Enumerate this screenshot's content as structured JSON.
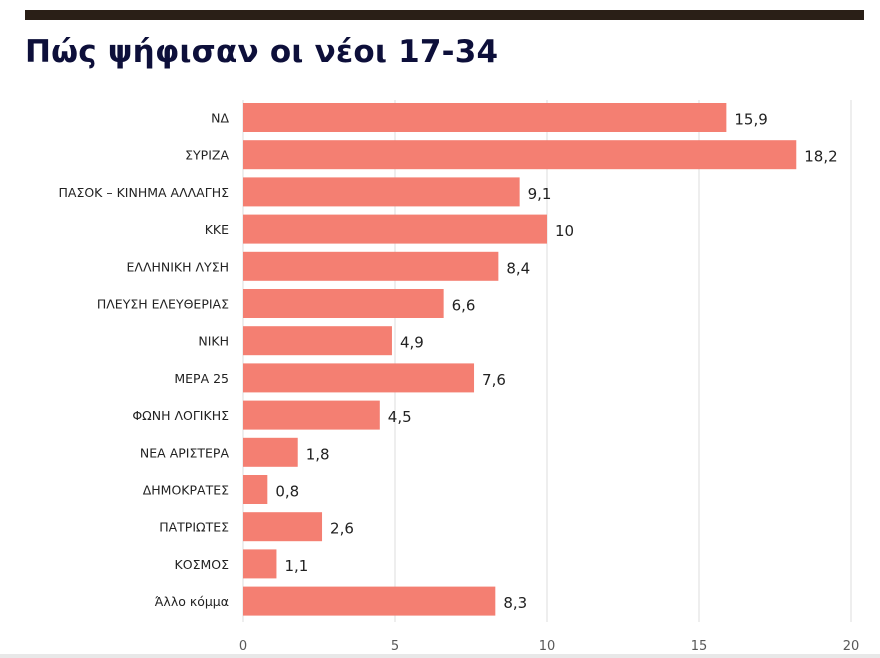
{
  "title": "Πώς ψήφισαν οι νέοι 17-34",
  "chart_data": {
    "type": "bar",
    "orientation": "horizontal",
    "title": "Πώς ψήφισαν οι νέοι 17-34",
    "categories": [
      "ΝΔ",
      "ΣΥΡΙΖΑ",
      "ΠΑΣΟΚ – ΚΙΝΗΜΑ ΑΛΛΑΓΗΣ",
      "ΚΚΕ",
      "ΕΛΛΗΝΙΚΗ ΛΥΣΗ",
      "ΠΛΕΥΣΗ ΕΛΕΥΘΕΡΙΑΣ",
      "ΝΙΚΗ",
      "ΜΕΡΑ 25",
      "ΦΩΝΗ ΛΟΓΙΚΗΣ",
      "ΝΕΑ ΑΡΙΣΤΕΡΑ",
      "ΔΗΜΟΚΡΑΤΕΣ",
      "ΠΑΤΡΙΩΤΕΣ",
      "ΚΟΣΜΟΣ",
      "Άλλο κόμμα"
    ],
    "values": [
      15.9,
      18.2,
      9.1,
      10,
      8.4,
      6.6,
      4.9,
      7.6,
      4.5,
      1.8,
      0.8,
      2.6,
      1.1,
      8.3
    ],
    "data_labels": [
      "15,9",
      "18,2",
      "9,1",
      "10",
      "8,4",
      "6,6",
      "4,9",
      "7,6",
      "4,5",
      "1,8",
      "0,8",
      "2,6",
      "1,1",
      "8,3"
    ],
    "xlim": [
      0,
      20
    ],
    "x_ticks": [
      "0",
      "5",
      "10",
      "15",
      "20"
    ],
    "xlabel": "",
    "ylabel": "",
    "grid": true,
    "bar_color": "#f47f72"
  }
}
